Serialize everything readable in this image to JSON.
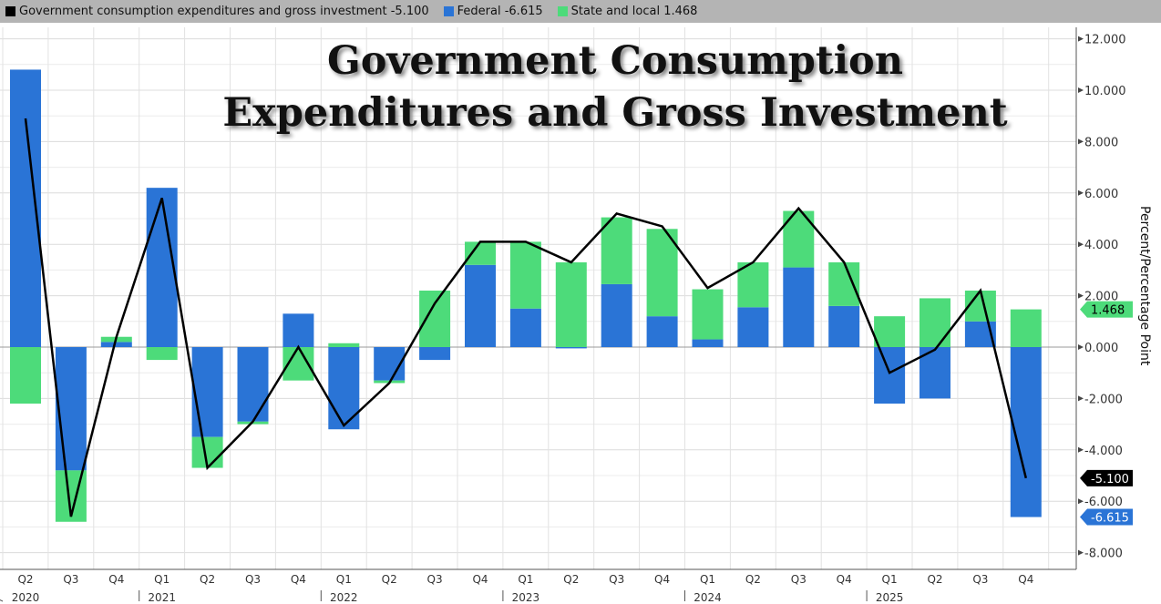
{
  "legend": [
    {
      "label": "Government consumption expenditures and gross investment",
      "value": "-5.100",
      "color": "#000000"
    },
    {
      "label": "Federal",
      "value": "-6.615",
      "color": "#2a74d6"
    },
    {
      "label": "State and local",
      "value": "1.468",
      "color": "#4ddb7a"
    }
  ],
  "chart_data": {
    "type": "bar",
    "title": "Government Consumption Expenditures and Gross Investment",
    "title_lines": [
      "Government Consumption",
      "Expenditures and Gross Investment"
    ],
    "ylabel": "Percent/Percentage Point",
    "ylim": [
      -8.8,
      12.6
    ],
    "yticks": [
      "12.000",
      "10.000",
      "8.000",
      "6.000",
      "4.000",
      "2.000",
      "0.000",
      "-2.000",
      "-4.000",
      "-6.000",
      "-8.000"
    ],
    "ytick_values": [
      12,
      10,
      8,
      6,
      4,
      2,
      0,
      -2,
      -4,
      -6,
      -8
    ],
    "categories": [
      "Q2",
      "Q3",
      "Q4",
      "Q1",
      "Q2",
      "Q3",
      "Q4",
      "Q1",
      "Q2",
      "Q3",
      "Q4",
      "Q1",
      "Q2",
      "Q3",
      "Q4",
      "Q1",
      "Q2",
      "Q3",
      "Q4",
      "Q1",
      "Q2",
      "Q3",
      "Q4"
    ],
    "years": [
      {
        "label": "2020",
        "index": 0
      },
      {
        "label": "2021",
        "index": 3
      },
      {
        "label": "2022",
        "index": 7
      },
      {
        "label": "2023",
        "index": 11
      },
      {
        "label": "2024",
        "index": 15
      },
      {
        "label": "2025",
        "index": 19
      }
    ],
    "series": [
      {
        "name": "Federal",
        "type": "stacked-bar",
        "color": "#2a74d6",
        "values": [
          10.8,
          -4.8,
          0.2,
          6.2,
          -3.5,
          -2.9,
          1.3,
          -3.2,
          -1.3,
          -0.5,
          3.2,
          1.5,
          -0.05,
          2.45,
          1.2,
          0.3,
          1.55,
          3.1,
          1.6,
          -2.2,
          -2.0,
          1.0,
          -6.615
        ]
      },
      {
        "name": "State and local",
        "type": "stacked-bar",
        "color": "#4ddb7a",
        "values": [
          -2.2,
          -2.0,
          0.2,
          -0.5,
          -1.2,
          -0.1,
          -1.3,
          0.15,
          -0.1,
          2.2,
          0.9,
          2.6,
          3.3,
          2.6,
          3.4,
          1.95,
          1.75,
          2.2,
          1.7,
          1.2,
          1.9,
          1.2,
          1.468
        ]
      },
      {
        "name": "Government consumption expenditures and gross investment",
        "type": "line",
        "color": "#000000",
        "values": [
          8.9,
          -6.6,
          0.4,
          5.8,
          -4.7,
          -2.9,
          0.0,
          -3.05,
          -1.4,
          1.7,
          4.1,
          4.1,
          3.3,
          5.2,
          4.7,
          2.3,
          3.3,
          5.4,
          3.3,
          -1.0,
          -0.1,
          2.2,
          -5.1
        ]
      }
    ],
    "last_value_labels": [
      {
        "series": "State and local",
        "text": "1.468",
        "value": 1.468,
        "color": "#4ddb7a",
        "text_color": "#000"
      },
      {
        "series": "Government consumption expenditures and gross investment",
        "text": "-5.100",
        "value": -5.1,
        "color": "#000000",
        "text_color": "#fff"
      },
      {
        "series": "Federal",
        "text": "-6.615",
        "value": -6.615,
        "color": "#2a74d6",
        "text_color": "#fff"
      }
    ]
  }
}
